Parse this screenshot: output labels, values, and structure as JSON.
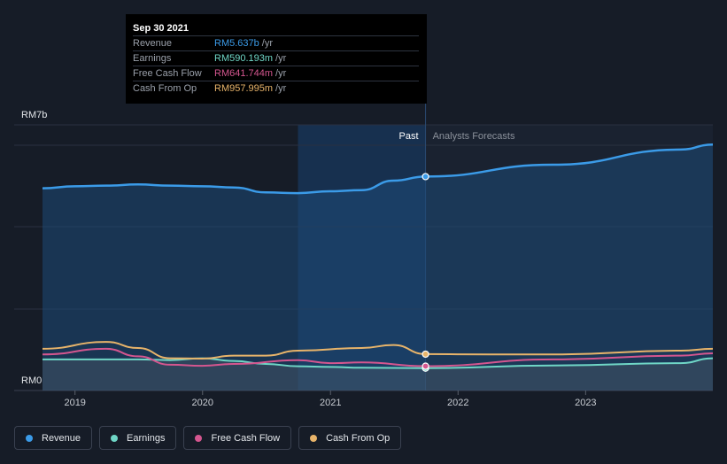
{
  "tooltip": {
    "date": "Sep 30 2021",
    "rows": [
      {
        "label": "Revenue",
        "value": "RM5.637b",
        "unit": "/yr",
        "color": "#3b9be8"
      },
      {
        "label": "Earnings",
        "value": "RM590.193m",
        "unit": "/yr",
        "color": "#6fd6c6"
      },
      {
        "label": "Free Cash Flow",
        "value": "RM641.744m",
        "unit": "/yr",
        "color": "#d4568f"
      },
      {
        "label": "Cash From Op",
        "value": "RM957.995m",
        "unit": "/yr",
        "color": "#e8b46a"
      }
    ]
  },
  "labels": {
    "past": "Past",
    "forecast": "Analysts Forecasts"
  },
  "legend": [
    {
      "label": "Revenue",
      "color": "#3b9be8"
    },
    {
      "label": "Earnings",
      "color": "#6fd6c6"
    },
    {
      "label": "Free Cash Flow",
      "color": "#d4568f"
    },
    {
      "label": "Cash From Op",
      "color": "#e8b46a"
    }
  ],
  "chart_data": {
    "type": "line",
    "y_unit": "RM",
    "ylim": [
      0,
      7
    ],
    "y_tick_labels": [
      "RM0",
      "RM7b"
    ],
    "x_tick_labels": [
      "2019",
      "2020",
      "2021",
      "2022",
      "2023"
    ],
    "x_range": [
      "2018-09-30",
      "2023-12-31"
    ],
    "highlight_date": "2021-09-30",
    "grid": true,
    "legend_position": "bottom-left",
    "series": [
      {
        "name": "Revenue",
        "color": "#3b9be8",
        "values": [
          [
            "2018-09-30",
            5.33
          ],
          [
            "2018-12-31",
            5.38
          ],
          [
            "2019-03-31",
            5.4
          ],
          [
            "2019-06-30",
            5.43
          ],
          [
            "2019-09-30",
            5.4
          ],
          [
            "2019-12-31",
            5.38
          ],
          [
            "2020-03-31",
            5.35
          ],
          [
            "2020-06-30",
            5.22
          ],
          [
            "2020-09-30",
            5.2
          ],
          [
            "2020-12-31",
            5.25
          ],
          [
            "2021-03-31",
            5.28
          ],
          [
            "2021-06-30",
            5.53
          ],
          [
            "2021-09-30",
            5.637
          ],
          [
            "2022-09-30",
            5.95
          ],
          [
            "2023-09-30",
            6.35
          ],
          [
            "2023-12-31",
            6.48
          ]
        ]
      },
      {
        "name": "Earnings",
        "color": "#6fd6c6",
        "values": [
          [
            "2018-09-30",
            0.82
          ],
          [
            "2019-06-30",
            0.82
          ],
          [
            "2019-09-30",
            0.8
          ],
          [
            "2019-12-31",
            0.85
          ],
          [
            "2020-03-31",
            0.78
          ],
          [
            "2020-06-30",
            0.7
          ],
          [
            "2020-09-30",
            0.64
          ],
          [
            "2020-12-31",
            0.62
          ],
          [
            "2021-03-31",
            0.6
          ],
          [
            "2021-09-30",
            0.59
          ],
          [
            "2022-09-30",
            0.66
          ],
          [
            "2023-09-30",
            0.72
          ],
          [
            "2023-12-31",
            0.85
          ]
        ]
      },
      {
        "name": "Free Cash Flow",
        "color": "#d4568f",
        "values": [
          [
            "2018-09-30",
            0.95
          ],
          [
            "2019-03-31",
            1.1
          ],
          [
            "2019-06-30",
            0.9
          ],
          [
            "2019-09-30",
            0.68
          ],
          [
            "2019-12-31",
            0.65
          ],
          [
            "2020-03-31",
            0.7
          ],
          [
            "2020-09-30",
            0.8
          ],
          [
            "2020-12-31",
            0.72
          ],
          [
            "2021-03-31",
            0.74
          ],
          [
            "2021-09-30",
            0.642
          ],
          [
            "2022-09-30",
            0.82
          ],
          [
            "2023-09-30",
            0.92
          ],
          [
            "2023-12-31",
            0.98
          ]
        ]
      },
      {
        "name": "Cash From Op",
        "color": "#e8b46a",
        "values": [
          [
            "2018-09-30",
            1.1
          ],
          [
            "2019-03-31",
            1.28
          ],
          [
            "2019-06-30",
            1.12
          ],
          [
            "2019-09-30",
            0.85
          ],
          [
            "2019-12-31",
            0.84
          ],
          [
            "2020-03-31",
            0.92
          ],
          [
            "2020-06-30",
            0.92
          ],
          [
            "2020-09-30",
            1.05
          ],
          [
            "2021-03-31",
            1.12
          ],
          [
            "2021-06-30",
            1.2
          ],
          [
            "2021-09-30",
            0.958
          ],
          [
            "2022-03-31",
            0.95
          ],
          [
            "2022-09-30",
            0.95
          ],
          [
            "2023-09-30",
            1.05
          ],
          [
            "2023-12-31",
            1.1
          ]
        ]
      }
    ]
  }
}
